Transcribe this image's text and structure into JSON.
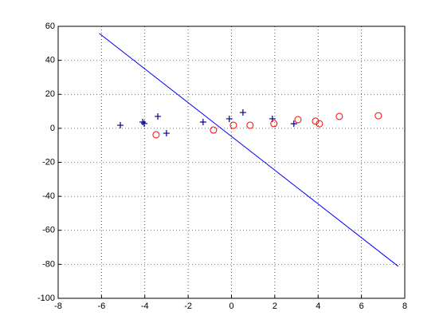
{
  "chart_data": {
    "type": "scatter",
    "xlim": [
      -8,
      8
    ],
    "xticks": [
      -8,
      -6,
      -4,
      -2,
      0,
      2,
      4,
      6,
      8
    ],
    "ylim": [
      -100,
      60
    ],
    "yticks": [
      -100,
      -80,
      -60,
      -40,
      -20,
      0,
      20,
      40,
      60
    ],
    "grid": true,
    "series": [
      {
        "marker": "+",
        "color": "#00008b",
        "x": [
          -5.13,
          -4.1,
          -4.03,
          -3.4,
          -3.0,
          -1.31,
          -0.1,
          0.53,
          1.89,
          2.88
        ],
        "values": [
          1.8,
          3.7,
          2.8,
          7,
          -2.9,
          3.7,
          5.6,
          9.3,
          5.6,
          2.7
        ]
      },
      {
        "marker": "o",
        "color": "#ff0000",
        "x": [
          -3.48,
          -0.83,
          0.09,
          0.86,
          1.96,
          3.07,
          3.88,
          4.06,
          4.98,
          6.78
        ],
        "values": [
          -3.8,
          -1,
          1.8,
          1.8,
          2.8,
          5.1,
          4.2,
          2.7,
          7,
          7.4
        ]
      },
      {
        "marker": "line",
        "color": "#0000ff",
        "x": [
          -6.1,
          7.7
        ],
        "values": [
          55.8,
          -81.2
        ]
      }
    ]
  }
}
